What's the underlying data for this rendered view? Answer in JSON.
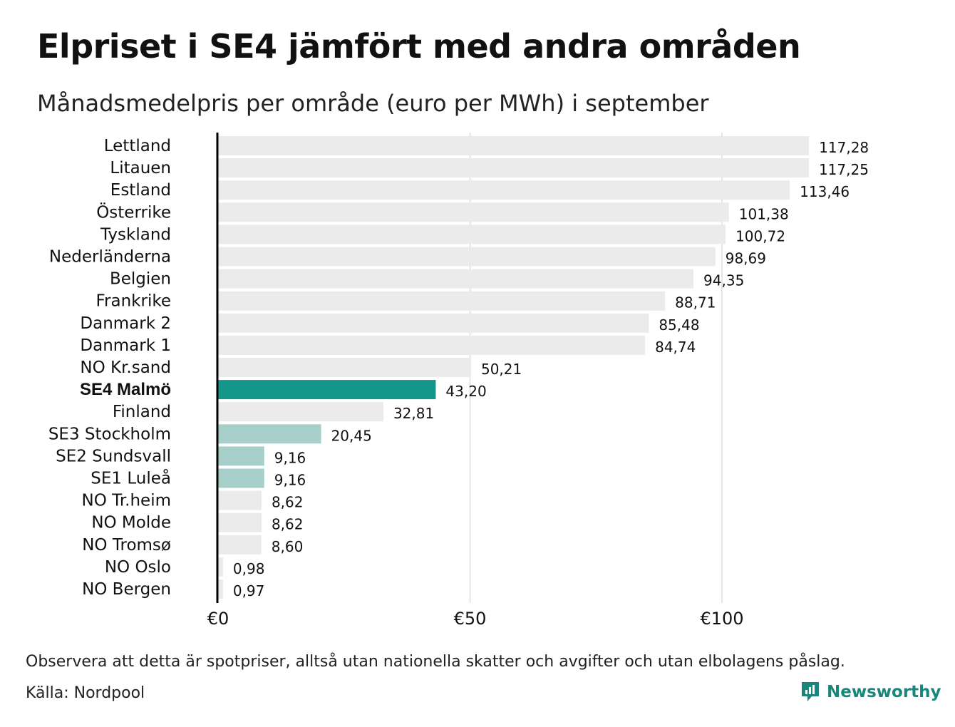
{
  "title": "Elpriset i SE4 jämfört med andra områden",
  "subtitle": "Månadsmedelpris per område (euro per MWh) i september",
  "note": "Observera att detta är spotpriser, alltså utan nationella skatter och avgifter och utan elbolagens påslag.",
  "source": "Källa: Nordpool",
  "brand": {
    "name": "Newsworthy",
    "icon": "newsworthy-logo-icon",
    "color": "#16877a"
  },
  "colors": {
    "default_bar": "#ebebeb",
    "highlight_bar": "#14968a",
    "swedish_bar": "#a7cfc9",
    "gridline": "#cccccc",
    "axis": "#000000"
  },
  "chart_data": {
    "type": "bar",
    "orientation": "horizontal",
    "categories": [
      "Lettland",
      "Litauen",
      "Estland",
      "Österrike",
      "Tyskland",
      "Nederländerna",
      "Belgien",
      "Frankrike",
      "Danmark  2",
      "Danmark  1",
      "NO Kr.sand",
      "SE4 Malmö",
      "Finland",
      "SE3  Stockholm",
      "SE2  Sundsvall",
      "SE1  Luleå",
      "NO Tr.heim",
      "NO Molde",
      "NO Tromsø",
      "NO Oslo",
      "NO Bergen"
    ],
    "values": [
      117.28,
      117.25,
      113.46,
      101.38,
      100.72,
      98.69,
      94.35,
      88.71,
      85.48,
      84.74,
      50.21,
      43.2,
      32.81,
      20.45,
      9.16,
      9.16,
      8.62,
      8.62,
      8.6,
      0.98,
      0.97
    ],
    "value_labels": [
      "117,28",
      "117,25",
      "113,46",
      "101,38",
      "100,72",
      "98,69",
      "94,35",
      "88,71",
      "85,48",
      "84,74",
      "50,21",
      "43,20",
      "32,81",
      "20,45",
      "9,16",
      "9,16",
      "8,62",
      "8,62",
      "8,60",
      "0,98",
      "0,97"
    ],
    "bar_color_keys": [
      "default_bar",
      "default_bar",
      "default_bar",
      "default_bar",
      "default_bar",
      "default_bar",
      "default_bar",
      "default_bar",
      "default_bar",
      "default_bar",
      "default_bar",
      "highlight_bar",
      "default_bar",
      "swedish_bar",
      "swedish_bar",
      "swedish_bar",
      "default_bar",
      "default_bar",
      "default_bar",
      "default_bar",
      "default_bar"
    ],
    "bold_categories": [
      "SE4 Malmö"
    ],
    "xlim": [
      0,
      122
    ],
    "xticks": [
      0,
      50,
      100
    ],
    "xtick_labels": [
      "€0",
      "€50",
      "€100"
    ],
    "grid": true,
    "title": "Elpriset i SE4 jämfört med andra områden",
    "xlabel": "",
    "ylabel": ""
  }
}
